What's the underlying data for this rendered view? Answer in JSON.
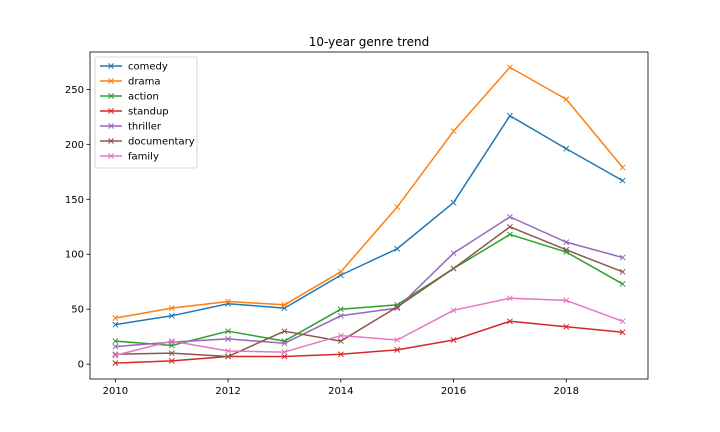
{
  "chart_data": {
    "type": "line",
    "title": "10-year genre trend",
    "xlabel": "",
    "ylabel": "",
    "x": [
      2010,
      2011,
      2012,
      2013,
      2014,
      2015,
      2016,
      2017,
      2018,
      2019
    ],
    "xlim": [
      2009.55,
      2019.45
    ],
    "ylim": [
      -13.5,
      284
    ],
    "xticks": [
      2010,
      2012,
      2014,
      2016,
      2018
    ],
    "yticks": [
      0,
      50,
      100,
      150,
      200,
      250
    ],
    "grid": false,
    "legend_position": "top-left",
    "marker": "x",
    "series": [
      {
        "name": "comedy",
        "color": "#1f77b4",
        "values": [
          36,
          44,
          55,
          51,
          81,
          105,
          147,
          226,
          196,
          167
        ]
      },
      {
        "name": "drama",
        "color": "#ff7f0e",
        "values": [
          42,
          51,
          57,
          54,
          84,
          143,
          212,
          270,
          241,
          179
        ]
      },
      {
        "name": "action",
        "color": "#2ca02c",
        "values": [
          21,
          17,
          30,
          21,
          50,
          54,
          87,
          118,
          102,
          73
        ]
      },
      {
        "name": "standup",
        "color": "#d62728",
        "values": [
          1,
          3,
          7,
          7,
          9,
          13,
          22,
          39,
          34,
          29
        ]
      },
      {
        "name": "thriller",
        "color": "#9467bd",
        "values": [
          16,
          20,
          23,
          19,
          44,
          51,
          101,
          134,
          111,
          97
        ]
      },
      {
        "name": "documentary",
        "color": "#8c564b",
        "values": [
          9,
          10,
          7,
          30,
          21,
          52,
          87,
          125,
          104,
          84
        ]
      },
      {
        "name": "family",
        "color": "#e377c2",
        "values": [
          8,
          21,
          12,
          11,
          26,
          22,
          49,
          60,
          58,
          39
        ]
      }
    ]
  }
}
